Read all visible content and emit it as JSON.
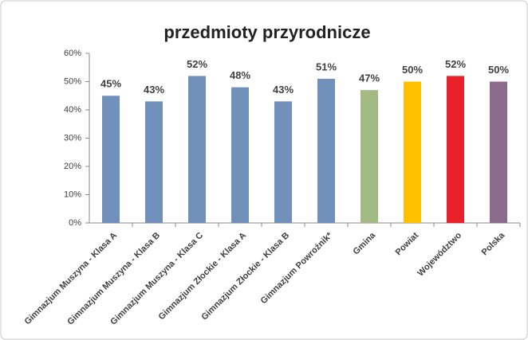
{
  "chart_data": {
    "type": "bar",
    "title": "przedmioty przyrodnicze",
    "categories": [
      "Gimnazjum Muszyna - Klasa A",
      "Gimnazjum Muszyna - Klasa B",
      "Gimnazjum Muszyna - Klasa C",
      "Gimnazjum Złockie - Klasa A",
      "Gimnazjum Złockie - Klasa B",
      "Gimnazjum Powroźnik*",
      "Gmina",
      "Powiat",
      "Województwo",
      "Polska"
    ],
    "values": [
      45,
      43,
      52,
      48,
      43,
      51,
      47,
      50,
      52,
      50
    ],
    "value_labels": [
      "45%",
      "43%",
      "52%",
      "48%",
      "43%",
      "51%",
      "47%",
      "50%",
      "52%",
      "50%"
    ],
    "colors": [
      "#7190ba",
      "#7190ba",
      "#7190ba",
      "#7190ba",
      "#7190ba",
      "#7190ba",
      "#a3ba84",
      "#ffc000",
      "#e8202a",
      "#8b6a8c"
    ],
    "ylim": [
      0,
      60
    ],
    "yticks": [
      {
        "value": 0,
        "label": "0%"
      },
      {
        "value": 10,
        "label": "10%"
      },
      {
        "value": 20,
        "label": "20%"
      },
      {
        "value": 30,
        "label": "30%"
      },
      {
        "value": 40,
        "label": "40%"
      },
      {
        "value": 50,
        "label": "50%"
      },
      {
        "value": 60,
        "label": "60%"
      }
    ],
    "grid": false
  }
}
